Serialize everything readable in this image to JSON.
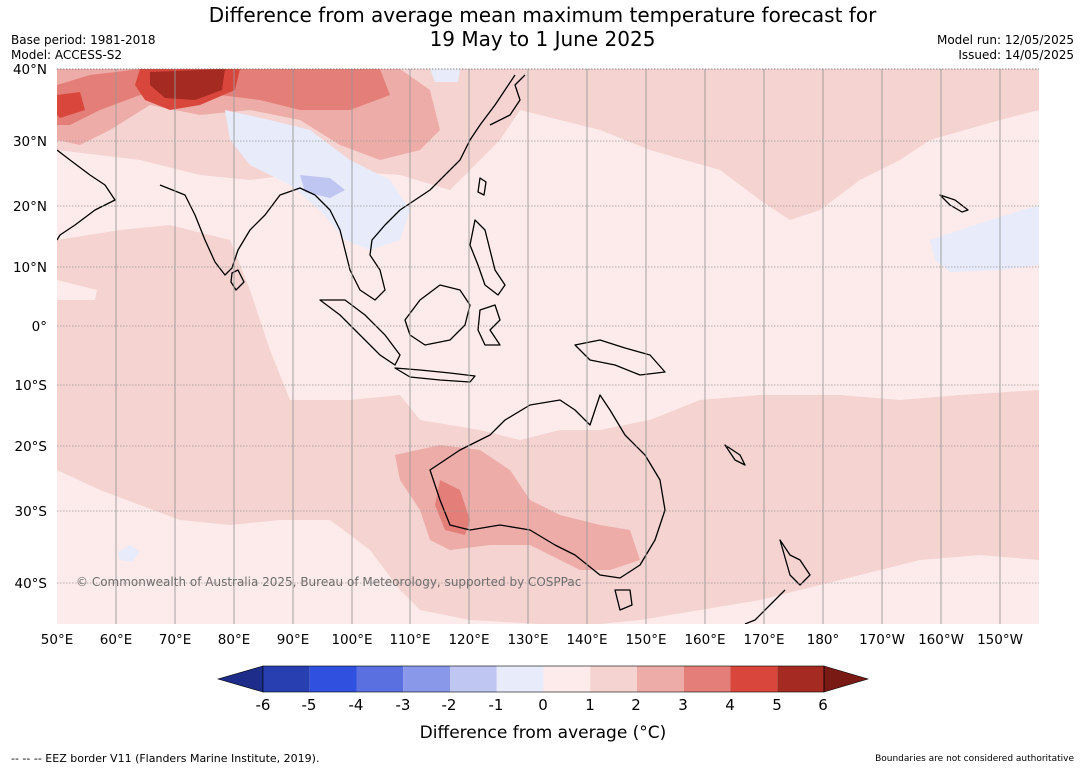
{
  "title_line1": "Difference from average mean maximum temperature forecast for",
  "title_line2": "19 May to 1 June 2025",
  "base_period": "Base period: 1981-2018",
  "model": "Model: ACCESS-S2",
  "model_run": "Model run: 12/05/2025",
  "issued": "Issued: 14/05/2025",
  "map": {
    "lat_labels": [
      "40°N",
      "30°N",
      "20°N",
      "10°N",
      "0°",
      "10°S",
      "20°S",
      "30°S",
      "40°S"
    ],
    "lon_labels": [
      "50°E",
      "60°E",
      "70°E",
      "80°E",
      "90°E",
      "100°E",
      "110°E",
      "120°E",
      "130°E",
      "140°E",
      "150°E",
      "160°E",
      "170°E",
      "180°",
      "170°W",
      "160°W",
      "150°W"
    ],
    "copyright": "© Commonwealth of Australia 2025, Bureau of Meteorology, supported by COSPPac"
  },
  "colorbar": {
    "title": "Difference from average (°C)",
    "ticks": [
      "-6",
      "-5",
      "-4",
      "-3",
      "-2",
      "-1",
      "0",
      "1",
      "2",
      "3",
      "4",
      "5",
      "6"
    ],
    "colors": [
      "#1e2d8a",
      "#283fb2",
      "#3050e0",
      "#5a6fe0",
      "#8a98ea",
      "#c0c6f2",
      "#e8ebfa",
      "#fcebea",
      "#f4d3d0",
      "#eeaca8",
      "#e37f78",
      "#d9463c",
      "#a52a22",
      "#7a1a14"
    ]
  },
  "footer_left": "--  --  -- EEZ border V11 (Flanders Marine Institute, 2019).",
  "footer_right": "Boundaries are not considered authoritative",
  "legend_colors": {
    "ocean_base": "#fcebea",
    "light_warm": "#f4d3d0",
    "warm": "#eeaca8",
    "hot": "#e37f78",
    "very_hot": "#d9463c",
    "extreme": "#a52a22",
    "cool": "#e8ebfa",
    "cooler": "#c0c6f2"
  }
}
